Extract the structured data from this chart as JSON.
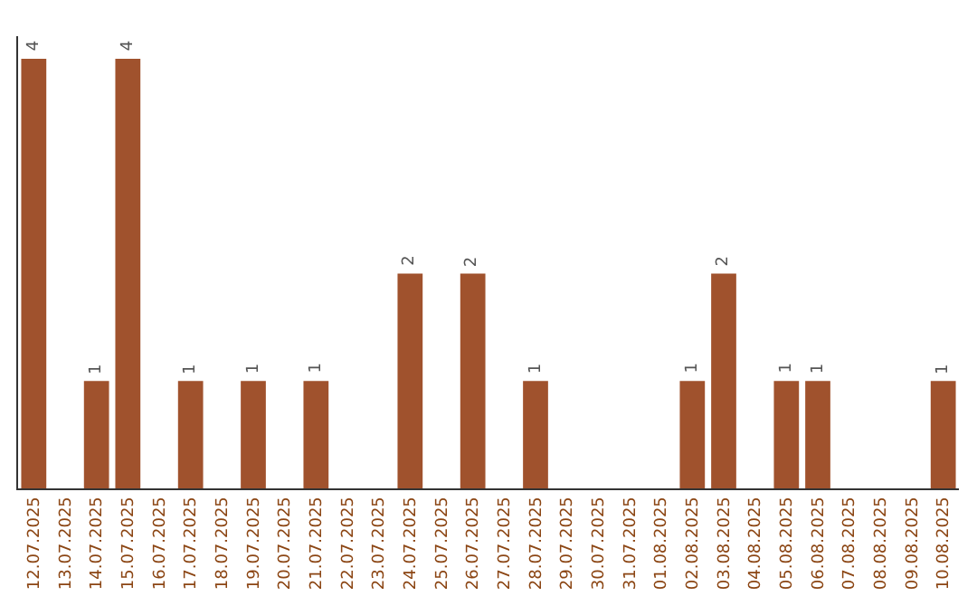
{
  "chart_data": {
    "type": "bar",
    "categories": [
      "12.07.2025",
      "13.07.2025",
      "14.07.2025",
      "15.07.2025",
      "16.07.2025",
      "17.07.2025",
      "18.07.2025",
      "19.07.2025",
      "20.07.2025",
      "21.07.2025",
      "22.07.2025",
      "23.07.2025",
      "24.07.2025",
      "25.07.2025",
      "26.07.2025",
      "27.07.2025",
      "28.07.2025",
      "29.07.2025",
      "30.07.2025",
      "31.07.2025",
      "01.08.2025",
      "02.08.2025",
      "03.08.2025",
      "04.08.2025",
      "05.08.2025",
      "06.08.2025",
      "07.08.2025",
      "08.08.2025",
      "09.08.2025",
      "10.08.2025"
    ],
    "values": [
      4,
      0,
      1,
      4,
      0,
      1,
      0,
      1,
      0,
      1,
      0,
      0,
      2,
      0,
      2,
      0,
      1,
      0,
      0,
      0,
      0,
      1,
      2,
      0,
      1,
      1,
      0,
      0,
      0,
      1
    ],
    "value_labels": [
      "4",
      null,
      "1",
      "4",
      null,
      "1",
      null,
      "1",
      null,
      "1",
      null,
      null,
      "2",
      null,
      "2",
      null,
      "1",
      null,
      null,
      null,
      null,
      "1",
      "2",
      null,
      "1",
      "1",
      null,
      null,
      null,
      "1"
    ],
    "color": "#a0522d",
    "grid": false,
    "tick_labels": "x"
  }
}
